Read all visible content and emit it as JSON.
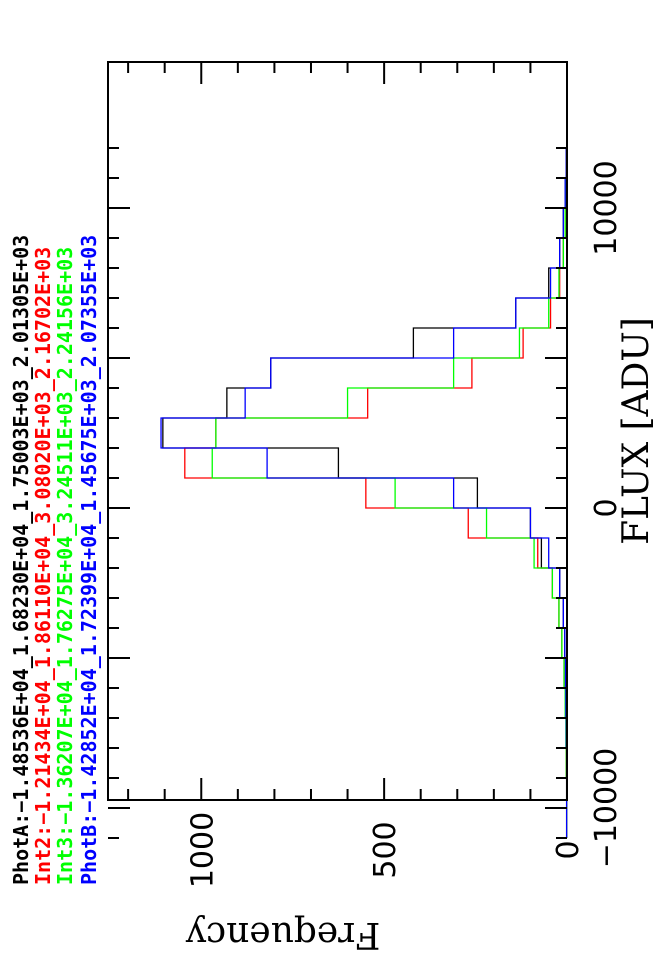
{
  "chart_data": {
    "type": "histogram",
    "orientation": "rotated-90",
    "xlabel": "FLUX [ADU]",
    "ylabel": "Frequency",
    "xlim": [
      -11800,
      12800
    ],
    "ylim": [
      0,
      1255
    ],
    "x_ticks_major": [
      -10000,
      0,
      10000
    ],
    "x_tick_labels": [
      "−10000",
      "0",
      "10000"
    ],
    "y_ticks_major": [
      0,
      500,
      1000
    ],
    "y_tick_labels": [
      "0",
      "500",
      "1000"
    ],
    "bin_edges": [
      -11000,
      -10000,
      -9000,
      -8000,
      -7000,
      -6000,
      -5000,
      -4000,
      -3000,
      -2000,
      -1000,
      0,
      1000,
      2000,
      3000,
      4000,
      5000,
      6000,
      7000,
      8000,
      9000,
      10000,
      11000,
      12000
    ],
    "series": [
      {
        "name": "PhotA",
        "color": "#000000",
        "values": [
          1,
          1,
          1,
          2,
          3,
          4,
          6,
          10,
          20,
          70,
          100,
          245,
          625,
          1105,
          930,
          810,
          420,
          140,
          50,
          20,
          10,
          5,
          2
        ]
      },
      {
        "name": "Int2",
        "color": "#ff0000",
        "values": [
          1,
          1,
          2,
          2,
          4,
          8,
          14,
          22,
          40,
          80,
          270,
          550,
          1045,
          960,
          545,
          260,
          120,
          45,
          20,
          10,
          5,
          2,
          1
        ]
      },
      {
        "name": "Int3",
        "color": "#00ff00",
        "values": [
          1,
          1,
          2,
          3,
          5,
          8,
          14,
          22,
          40,
          90,
          220,
          470,
          970,
          960,
          600,
          310,
          130,
          50,
          22,
          10,
          5,
          2,
          1
        ]
      },
      {
        "name": "PhotB",
        "color": "#0000ff",
        "values": [
          1,
          1,
          1,
          2,
          3,
          4,
          6,
          10,
          20,
          50,
          100,
          310,
          820,
          1110,
          880,
          810,
          310,
          140,
          45,
          20,
          10,
          5,
          2
        ]
      }
    ],
    "legend": [
      {
        "label": "PhotA:",
        "stats": "−1.48536E+04_1.68230E+04_1.75003E+03_2.01305E+03",
        "color": "#000000"
      },
      {
        "label": "Int2:",
        "stats": "−1.21434E+04_1.86110E+04_3.08020E+03_2.16702E+03",
        "color": "#ff0000"
      },
      {
        "label": "Int3:",
        "stats": "−1.36207E+04_1.76275E+04_3.24511E+03_2.24156E+03",
        "color": "#00ff00"
      },
      {
        "label": "PhotB:",
        "stats": "−1.42852E+04_1.72399E+04_1.45675E+03_2.07355E+03",
        "color": "#0000ff"
      }
    ],
    "legend_placement": "top-left (rotated)",
    "grid": false
  }
}
